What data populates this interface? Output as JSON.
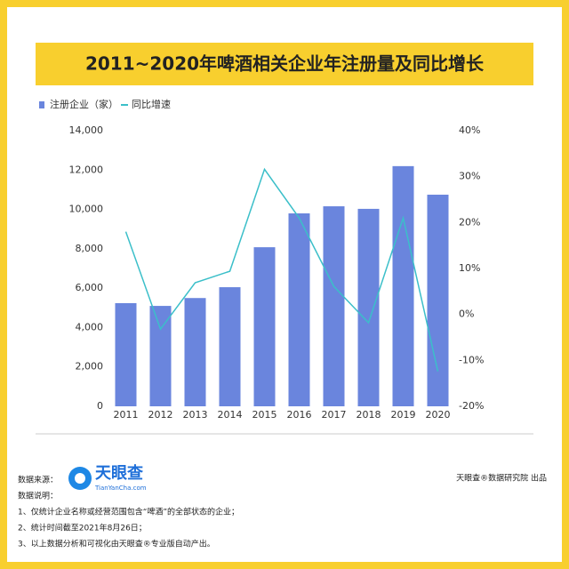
{
  "chart_data": {
    "type": "bar_line",
    "title": "2011~2020年啤酒相关企业年注册量及同比增长",
    "categories": [
      "2011",
      "2012",
      "2013",
      "2014",
      "2015",
      "2016",
      "2017",
      "2018",
      "2019",
      "2020"
    ],
    "series": [
      {
        "name": "注册企业（家）",
        "color": "#6a85dd",
        "type": "bar",
        "values": [
          5240,
          5100,
          5500,
          6050,
          8080,
          9800,
          10160,
          10030,
          12200,
          10750
        ]
      },
      {
        "name": "同比增速",
        "color": "#3bbfc9",
        "type": "line",
        "axis": "y2",
        "values": [
          18,
          -3.2,
          6.9,
          9.4,
          31.6,
          21,
          6.1,
          -1.8,
          21,
          -12.4
        ]
      }
    ],
    "ylim": [
      0,
      14000
    ],
    "yticks": [
      0,
      {
        "value": 2000,
        "label": "2,000"
      },
      {
        "value": 4000,
        "label": "4,000"
      },
      {
        "value": 6000,
        "label": "6,000"
      },
      {
        "value": 8000,
        "label": "8,000"
      },
      {
        "value": 10000,
        "label": "10,000"
      },
      {
        "value": 12000,
        "label": "12,000"
      },
      {
        "value": 14000,
        "label": "14,000"
      }
    ],
    "y2lim": [
      -20,
      40
    ],
    "y2ticks": [
      {
        "value": -20,
        "label": "-20%"
      },
      {
        "value": -10,
        "label": "-10%"
      },
      {
        "value": 0,
        "label": "0%"
      },
      {
        "value": 10,
        "label": "10%"
      },
      {
        "value": 20,
        "label": "20%"
      },
      {
        "value": 30,
        "label": "30%"
      },
      {
        "value": 40,
        "label": "40%"
      }
    ],
    "grid": false
  },
  "footer": {
    "source_label": "数据来源：",
    "logo_text": "天眼查",
    "logo_url": "TianYanCha.com",
    "credit": "天眼查®数据研究院 出品",
    "notes_title": "数据说明：",
    "notes": [
      "1、仅统计企业名称或经营范围包含“啤酒”的全部状态的企业；",
      "2、统计时间截至2021年8月26日；",
      "3、以上数据分析和可视化由天眼查®专业版自动产出。"
    ]
  }
}
